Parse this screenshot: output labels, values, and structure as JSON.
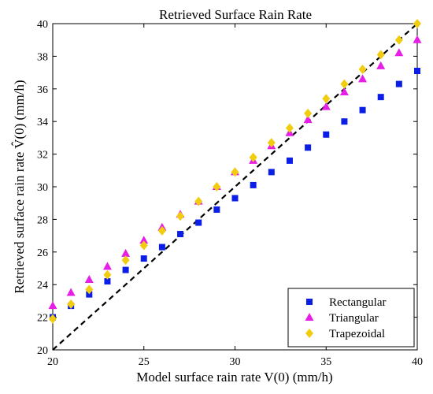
{
  "chart_data": {
    "type": "scatter",
    "title": "Retrieved Surface Rain Rate",
    "xlabel": "Model surface rain rate V(0) (mm/h)",
    "ylabel": "Retrieved surface rain rate V̂(0) (mm/h)",
    "xlim": [
      20,
      40
    ],
    "ylim": [
      20,
      40
    ],
    "xticks": [
      20,
      25,
      30,
      35,
      40
    ],
    "yticks": [
      20,
      22,
      24,
      26,
      28,
      30,
      32,
      34,
      36,
      38,
      40
    ],
    "grid": false,
    "legend_position": "bottom-right",
    "reference_line": {
      "style": "dashed",
      "color": "#000000",
      "from": [
        20,
        20
      ],
      "to": [
        40,
        40
      ]
    },
    "x": [
      20,
      21,
      22,
      23,
      24,
      25,
      26,
      27,
      28,
      29,
      30,
      31,
      32,
      33,
      34,
      35,
      36,
      37,
      38,
      39,
      40
    ],
    "series": [
      {
        "name": "Rectangular",
        "marker": "square",
        "color": "#0a1ee6",
        "values": [
          22.0,
          22.7,
          23.4,
          24.2,
          24.9,
          25.6,
          26.3,
          27.1,
          27.8,
          28.6,
          29.3,
          30.1,
          30.9,
          31.6,
          32.4,
          33.2,
          34.0,
          34.7,
          35.5,
          36.3,
          37.1
        ]
      },
      {
        "name": "Triangular",
        "marker": "triangle",
        "color": "#e61ee6",
        "values": [
          22.7,
          23.5,
          24.3,
          25.1,
          25.9,
          26.7,
          27.5,
          28.3,
          29.1,
          30.0,
          30.9,
          31.6,
          32.5,
          33.3,
          34.1,
          34.9,
          35.8,
          36.6,
          37.4,
          38.2,
          39.0
        ]
      },
      {
        "name": "Trapezoidal",
        "marker": "diamond",
        "color": "#f2cd0f",
        "values": [
          21.9,
          22.8,
          23.7,
          24.6,
          25.5,
          26.4,
          27.3,
          28.2,
          29.1,
          30.0,
          30.9,
          31.8,
          32.7,
          33.6,
          34.5,
          35.4,
          36.3,
          37.2,
          38.1,
          39.0,
          40.0
        ]
      }
    ]
  }
}
